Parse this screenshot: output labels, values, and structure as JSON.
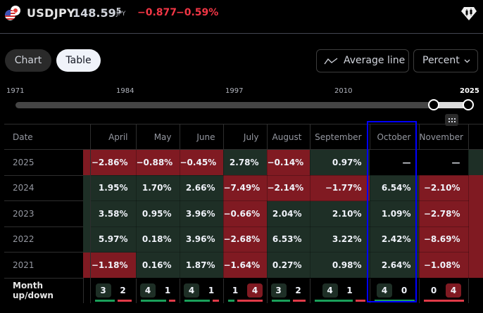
{
  "header": {
    "symbol": "USDJPY",
    "price_main": "148.59",
    "price_sup": "5",
    "currency": "JPY",
    "change": "−0.877",
    "change_percent": "−0.59%",
    "icons": [
      "usd-jpy-flags-icon",
      "seasonals-logo-icon"
    ]
  },
  "toolbar": {
    "view_tabs": [
      {
        "label": "Chart",
        "active": false
      },
      {
        "label": "Table",
        "active": true
      }
    ],
    "average_line_label": "Average line",
    "unit_select_value": "Percent"
  },
  "slider": {
    "year_labels": [
      "1971",
      "1984",
      "1997",
      "2010",
      "2025"
    ],
    "range_start_label": "",
    "range_end_label": "2025"
  },
  "table": {
    "columns": [
      "Date",
      "April",
      "May",
      "June",
      "July",
      "August",
      "September",
      "October",
      "November"
    ],
    "rows": [
      {
        "year": "2025",
        "values": [
          "−2.86%",
          "−0.88%",
          "−0.45%",
          "2.78%",
          "−0.14%",
          "0.97%",
          "—",
          "—"
        ],
        "signs": [
          "neg",
          "neg",
          "neg",
          "pos",
          "neg",
          "pos",
          "na",
          "na"
        ]
      },
      {
        "year": "2024",
        "values": [
          "1.95%",
          "1.70%",
          "2.66%",
          "−7.49%",
          "−2.14%",
          "−1.77%",
          "6.54%",
          "−2.10%"
        ],
        "signs": [
          "pos",
          "pos",
          "pos",
          "neg",
          "neg",
          "neg",
          "pos",
          "neg"
        ]
      },
      {
        "year": "2023",
        "values": [
          "3.58%",
          "0.95%",
          "3.96%",
          "−0.66%",
          "2.04%",
          "2.10%",
          "1.09%",
          "−2.78%"
        ],
        "signs": [
          "pos",
          "pos",
          "pos",
          "neg",
          "pos",
          "pos",
          "pos",
          "neg"
        ]
      },
      {
        "year": "2022",
        "values": [
          "5.97%",
          "0.18%",
          "3.96%",
          "−2.68%",
          "6.53%",
          "3.22%",
          "2.42%",
          "−8.69%"
        ],
        "signs": [
          "pos",
          "pos",
          "pos",
          "neg",
          "pos",
          "pos",
          "pos",
          "neg"
        ]
      },
      {
        "year": "2021",
        "values": [
          "−1.18%",
          "0.16%",
          "1.87%",
          "−1.64%",
          "0.27%",
          "0.98%",
          "2.64%",
          "−1.08%"
        ],
        "signs": [
          "neg",
          "pos",
          "pos",
          "neg",
          "pos",
          "pos",
          "pos",
          "neg"
        ]
      }
    ],
    "footer": {
      "label": "Month up/down",
      "counts": [
        {
          "up": "3",
          "down": "2"
        },
        {
          "up": "4",
          "down": "1"
        },
        {
          "up": "4",
          "down": "1"
        },
        {
          "up": "1",
          "down": "4"
        },
        {
          "up": "3",
          "down": "2"
        },
        {
          "up": "4",
          "down": "1"
        },
        {
          "up": "4",
          "down": "0"
        },
        {
          "up": "0",
          "down": "4"
        }
      ]
    },
    "highlighted_column": "October"
  },
  "colors": {
    "positive_cell": "#1e2f26",
    "negative_cell": "#801a22",
    "negative_text": "#f23645",
    "up_bar": "#1aa05a",
    "down_bar": "#e03a48",
    "highlight_border": "#0000ff"
  }
}
